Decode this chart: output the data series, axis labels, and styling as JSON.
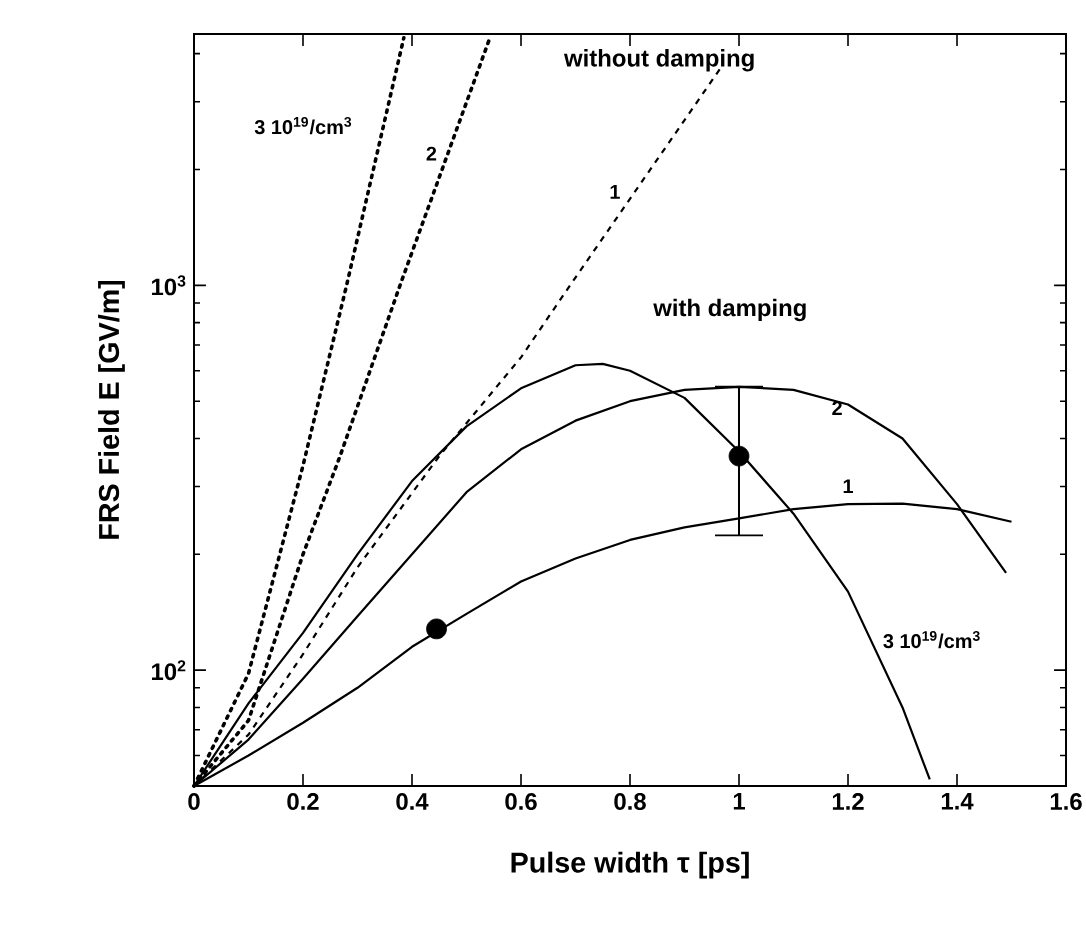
{
  "chart_data": {
    "type": "line",
    "xlabel": "Pulse width τ  [ps]",
    "ylabel": "FRS Field E [GV/m]",
    "log": "y",
    "xlim": [
      0,
      1.6
    ],
    "ylim": [
      50,
      4500
    ],
    "xticks": [
      0,
      0.2,
      0.4,
      0.6,
      0.8,
      1,
      1.2,
      1.4,
      1.6
    ],
    "yticks": [
      {
        "value": 60,
        "label": null
      },
      {
        "value": 70,
        "label": null
      },
      {
        "value": 80,
        "label": null
      },
      {
        "value": 90,
        "label": null
      },
      {
        "value": 100,
        "label": "10$^{2}$"
      },
      {
        "value": 200,
        "label": null
      },
      {
        "value": 300,
        "label": null
      },
      {
        "value": 400,
        "label": null
      },
      {
        "value": 500,
        "label": null
      },
      {
        "value": 600,
        "label": null
      },
      {
        "value": 700,
        "label": null
      },
      {
        "value": 800,
        "label": null
      },
      {
        "value": 900,
        "label": null
      },
      {
        "value": 1000,
        "label": "10$^{3}$"
      },
      {
        "value": 2000,
        "label": null
      },
      {
        "value": 3000,
        "label": null
      },
      {
        "value": 4000,
        "label": null
      }
    ],
    "grid": false,
    "series": [
      {
        "color": "#000000",
        "line_style": "solid",
        "x": [
          0,
          0.1,
          0.2,
          0.3,
          0.4,
          0.5,
          0.6,
          0.7,
          0.75,
          0.8,
          0.9,
          1.0,
          1.1,
          1.2,
          1.3,
          1.35
        ],
        "values": [
          50,
          82,
          125,
          200,
          310,
          430,
          540,
          620,
          625,
          600,
          510,
          370,
          255,
          160,
          80,
          52
        ]
      },
      {
        "color": "#000000",
        "line_style": "solid",
        "x": [
          0,
          0.1,
          0.2,
          0.3,
          0.4,
          0.5,
          0.6,
          0.7,
          0.8,
          0.9,
          1.0,
          1.1,
          1.2,
          1.3,
          1.4,
          1.49
        ],
        "values": [
          50,
          66,
          95,
          138,
          200,
          290,
          375,
          445,
          500,
          535,
          545,
          535,
          490,
          400,
          270,
          179
        ]
      },
      {
        "color": "#000000",
        "line_style": "solid",
        "x": [
          0,
          0.1,
          0.2,
          0.3,
          0.4,
          0.5,
          0.6,
          0.7,
          0.8,
          0.9,
          1.0,
          1.1,
          1.2,
          1.3,
          1.4,
          1.5
        ],
        "values": [
          50,
          60,
          73,
          90,
          115,
          140,
          170,
          195,
          218,
          235,
          248,
          262,
          270,
          271,
          262,
          243
        ]
      },
      {
        "color": "#000000",
        "line_style": "dotted",
        "x": [
          0,
          0.1,
          0.2,
          0.28,
          0.385
        ],
        "values": [
          50,
          98,
          340,
          1000,
          4400
        ]
      },
      {
        "color": "#000000",
        "line_style": "dotted",
        "x": [
          0,
          0.1,
          0.2,
          0.268,
          0.378,
          0.543
        ],
        "values": [
          50,
          74,
          200,
          360,
          1000,
          4400
        ]
      },
      {
        "color": "#000000",
        "line_style": "dashed",
        "x": [
          0,
          0.1,
          0.2,
          0.3,
          0.45,
          0.6,
          0.69,
          0.965
        ],
        "values": [
          50,
          68,
          110,
          185,
          360,
          650,
          1000,
          3650
        ]
      },
      {
        "type": "scatter",
        "color": "#000000",
        "marker": "circle",
        "x": [
          0.445,
          1.0
        ],
        "values": [
          128,
          360
        ],
        "errors": [
          null,
          [
            224,
            545
          ]
        ]
      }
    ],
    "annotations": [
      "without damping",
      "with damping",
      {
        "text": "1",
        "x": 0.81,
        "y": 1750
      },
      {
        "text": "2",
        "x": 0.466,
        "y": 2200
      },
      {
        "text": "3 10$^{19}$/cm$^{3}$",
        "x": 0.348,
        "y": 2600
      },
      {
        "text": "2",
        "x": 1.18,
        "y": 480
      },
      {
        "text": "1",
        "x": 1.2,
        "y": 270
      },
      {
        "text": "3 10$^{19}$/cm$^{3}$",
        "x": 1.24,
        "y": 120
      }
    ]
  }
}
